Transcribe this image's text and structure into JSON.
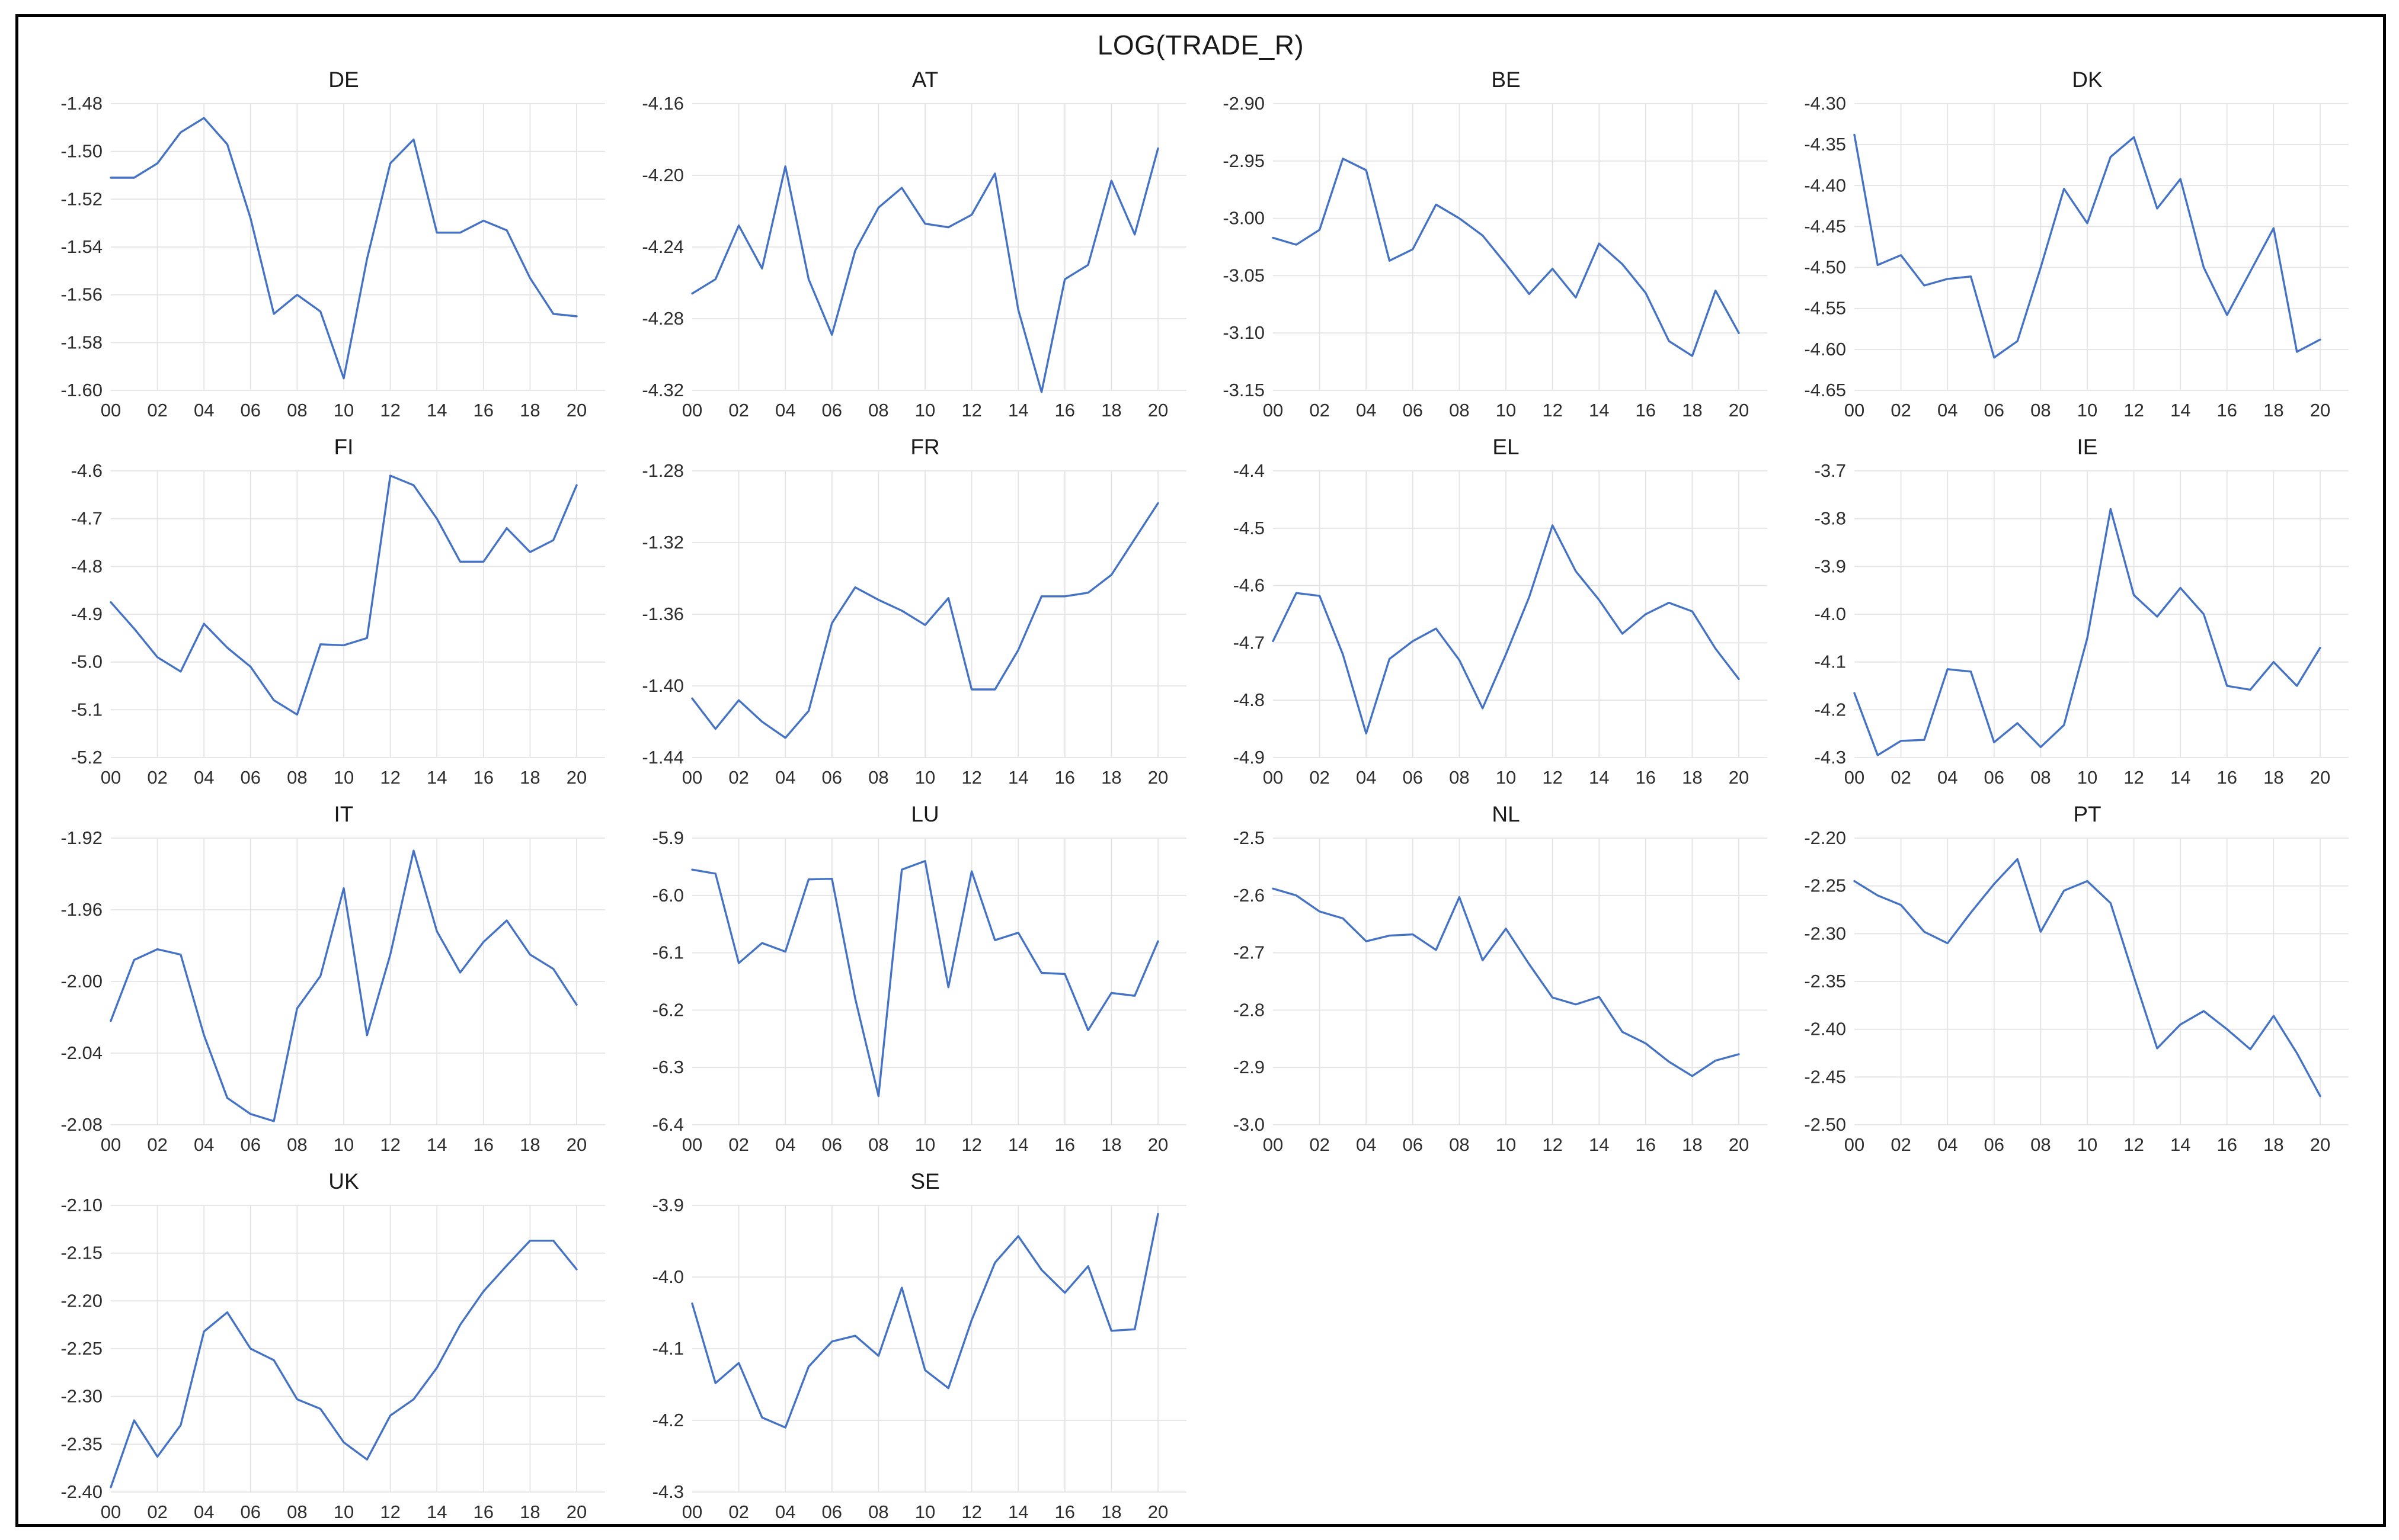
{
  "title": "LOG(TRADE_R)",
  "colors": {
    "line": "#4472C4",
    "grid": "#e4e4e4",
    "text": "#2e2e2e",
    "frame_border": "#000000",
    "background": "#ffffff"
  },
  "x_ticks": [
    "00",
    "02",
    "04",
    "06",
    "08",
    "10",
    "12",
    "14",
    "16",
    "18",
    "20"
  ],
  "chart_data": [
    {
      "type": "line",
      "title": "DE",
      "y_ticks": [
        "-1.48",
        "-1.50",
        "-1.52",
        "-1.54",
        "-1.56",
        "-1.58",
        "-1.60"
      ],
      "values": [
        -1.511,
        -1.511,
        -1.505,
        -1.492,
        -1.486,
        -1.497,
        -1.528,
        -1.568,
        -1.56,
        -1.567,
        -1.595,
        -1.545,
        -1.505,
        -1.495,
        -1.534,
        -1.534,
        -1.529,
        -1.533,
        -1.553,
        -1.568,
        -1.569
      ]
    },
    {
      "type": "line",
      "title": "AT",
      "y_ticks": [
        "-4.16",
        "-4.20",
        "-4.24",
        "-4.28",
        "-4.32"
      ],
      "values": [
        -4.266,
        -4.258,
        -4.228,
        -4.252,
        -4.195,
        -4.258,
        -4.289,
        -4.242,
        -4.218,
        -4.207,
        -4.227,
        -4.229,
        -4.222,
        -4.199,
        -4.275,
        -4.321,
        -4.258,
        -4.25,
        -4.203,
        -4.233,
        -4.185
      ]
    },
    {
      "type": "line",
      "title": "BE",
      "y_ticks": [
        "-2.90",
        "-2.95",
        "-3.00",
        "-3.05",
        "-3.10",
        "-3.15"
      ],
      "values": [
        -3.017,
        -3.023,
        -3.01,
        -2.948,
        -2.958,
        -3.037,
        -3.027,
        -2.988,
        -3.0,
        -3.015,
        -3.04,
        -3.066,
        -3.044,
        -3.069,
        -3.022,
        -3.04,
        -3.065,
        -3.107,
        -3.12,
        -3.063,
        -3.1
      ]
    },
    {
      "type": "line",
      "title": "DK",
      "y_ticks": [
        "-4.30",
        "-4.35",
        "-4.40",
        "-4.45",
        "-4.50",
        "-4.55",
        "-4.60",
        "-4.65"
      ],
      "values": [
        -4.338,
        -4.497,
        -4.485,
        -4.522,
        -4.514,
        -4.511,
        -4.61,
        -4.59,
        -4.5,
        -4.404,
        -4.446,
        -4.365,
        -4.341,
        -4.428,
        -4.392,
        -4.5,
        -4.558,
        -4.505,
        -4.452,
        -4.603,
        -4.588
      ]
    },
    {
      "type": "line",
      "title": "FI",
      "y_ticks": [
        "-4.6",
        "-4.7",
        "-4.8",
        "-4.9",
        "-5.0",
        "-5.1",
        "-5.2"
      ],
      "values": [
        -4.875,
        -4.93,
        -4.99,
        -5.02,
        -4.92,
        -4.97,
        -5.01,
        -5.08,
        -5.11,
        -4.963,
        -4.965,
        -4.95,
        -4.61,
        -4.63,
        -4.7,
        -4.79,
        -4.79,
        -4.72,
        -4.77,
        -4.745,
        -4.63
      ]
    },
    {
      "type": "line",
      "title": "FR",
      "y_ticks": [
        "-1.28",
        "-1.32",
        "-1.36",
        "-1.40",
        "-1.44"
      ],
      "values": [
        -1.407,
        -1.424,
        -1.408,
        -1.42,
        -1.429,
        -1.414,
        -1.365,
        -1.345,
        -1.352,
        -1.358,
        -1.366,
        -1.351,
        -1.402,
        -1.402,
        -1.38,
        -1.35,
        -1.35,
        -1.348,
        -1.338,
        -1.318,
        -1.298
      ]
    },
    {
      "type": "line",
      "title": "EL",
      "y_ticks": [
        "-4.4",
        "-4.5",
        "-4.6",
        "-4.7",
        "-4.8",
        "-4.9"
      ],
      "values": [
        -4.697,
        -4.613,
        -4.618,
        -4.72,
        -4.858,
        -4.728,
        -4.697,
        -4.675,
        -4.73,
        -4.814,
        -4.72,
        -4.62,
        -4.495,
        -4.575,
        -4.625,
        -4.684,
        -4.65,
        -4.63,
        -4.645,
        -4.71,
        -4.763
      ]
    },
    {
      "type": "line",
      "title": "IE",
      "y_ticks": [
        "-3.7",
        "-3.8",
        "-3.9",
        "-4.0",
        "-4.1",
        "-4.2",
        "-4.3"
      ],
      "values": [
        -4.165,
        -4.295,
        -4.265,
        -4.263,
        -4.115,
        -4.12,
        -4.268,
        -4.228,
        -4.278,
        -4.232,
        -4.05,
        -3.78,
        -3.96,
        -4.005,
        -3.945,
        -4.0,
        -4.15,
        -4.158,
        -4.1,
        -4.15,
        -4.07
      ]
    },
    {
      "type": "line",
      "title": "IT",
      "y_ticks": [
        "-1.92",
        "-1.96",
        "-2.00",
        "-2.04",
        "-2.08"
      ],
      "values": [
        -2.022,
        -1.988,
        -1.982,
        -1.985,
        -2.03,
        -2.065,
        -2.074,
        -2.078,
        -2.015,
        -1.997,
        -1.948,
        -2.03,
        -1.985,
        -1.927,
        -1.972,
        -1.995,
        -1.978,
        -1.966,
        -1.985,
        -1.993,
        -2.013
      ]
    },
    {
      "type": "line",
      "title": "LU",
      "y_ticks": [
        "-5.9",
        "-6.0",
        "-6.1",
        "-6.2",
        "-6.3",
        "-6.4"
      ],
      "values": [
        -5.955,
        -5.962,
        -6.118,
        -6.083,
        -6.098,
        -5.972,
        -5.971,
        -6.18,
        -6.35,
        -5.955,
        -5.94,
        -6.16,
        -5.958,
        -6.078,
        -6.065,
        -6.135,
        -6.137,
        -6.235,
        -6.17,
        -6.175,
        -6.08
      ]
    },
    {
      "type": "line",
      "title": "NL",
      "y_ticks": [
        "-2.5",
        "-2.6",
        "-2.7",
        "-2.8",
        "-2.9",
        "-3.0"
      ],
      "values": [
        -2.588,
        -2.6,
        -2.628,
        -2.64,
        -2.68,
        -2.67,
        -2.668,
        -2.695,
        -2.603,
        -2.713,
        -2.658,
        -2.72,
        -2.778,
        -2.79,
        -2.777,
        -2.838,
        -2.858,
        -2.89,
        -2.915,
        -2.888,
        -2.877
      ]
    },
    {
      "type": "line",
      "title": "PT",
      "y_ticks": [
        "-2.20",
        "-2.25",
        "-2.30",
        "-2.35",
        "-2.40",
        "-2.45",
        "-2.50"
      ],
      "values": [
        -2.245,
        -2.26,
        -2.27,
        -2.298,
        -2.31,
        -2.278,
        -2.248,
        -2.222,
        -2.298,
        -2.255,
        -2.245,
        -2.268,
        -2.345,
        -2.42,
        -2.395,
        -2.381,
        -2.4,
        -2.421,
        -2.386,
        -2.425,
        -2.47
      ]
    },
    {
      "type": "line",
      "title": "UK",
      "y_ticks": [
        "-2.10",
        "-2.15",
        "-2.20",
        "-2.25",
        "-2.30",
        "-2.35",
        "-2.40"
      ],
      "values": [
        -2.395,
        -2.325,
        -2.363,
        -2.33,
        -2.232,
        -2.212,
        -2.25,
        -2.262,
        -2.303,
        -2.313,
        -2.348,
        -2.366,
        -2.32,
        -2.303,
        -2.27,
        -2.225,
        -2.19,
        -2.163,
        -2.137,
        -2.137,
        -2.167
      ]
    },
    {
      "type": "line",
      "title": "SE",
      "y_ticks": [
        "-3.9",
        "-4.0",
        "-4.1",
        "-4.2",
        "-4.3"
      ],
      "values": [
        -4.037,
        -4.148,
        -4.12,
        -4.196,
        -4.21,
        -4.125,
        -4.09,
        -4.082,
        -4.11,
        -4.015,
        -4.13,
        -4.155,
        -4.06,
        -3.98,
        -3.943,
        -3.99,
        -4.022,
        -3.985,
        -4.075,
        -4.073,
        -3.912
      ]
    }
  ]
}
